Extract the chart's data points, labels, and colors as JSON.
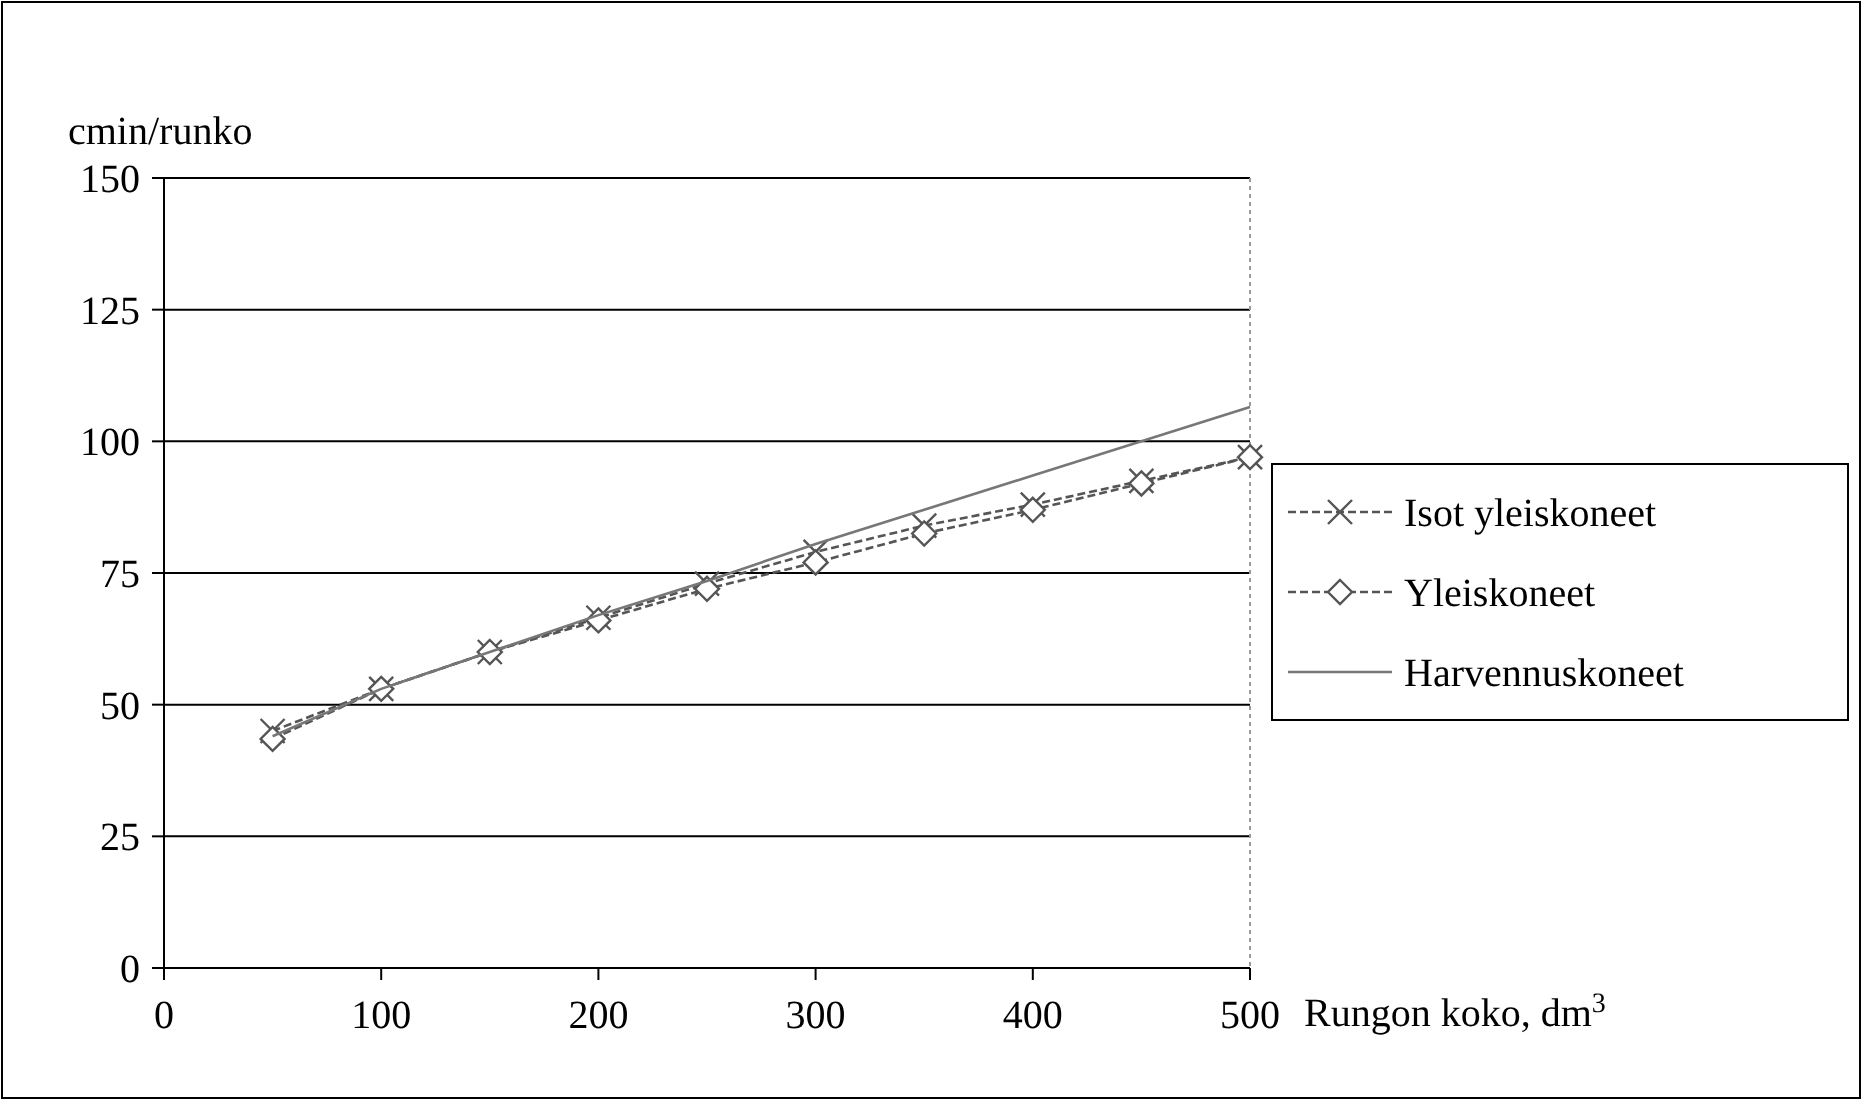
{
  "chart_data": {
    "type": "line",
    "xlabel": "Rungon koko, dm$^{3}$",
    "ylabel": "cmin/runko",
    "x": [
      50,
      100,
      150,
      200,
      250,
      300,
      350,
      400,
      450,
      500
    ],
    "series": [
      {
        "name": "Isot yleiskoneet",
        "color": "#555555",
        "marker": "cross",
        "line_style": "dashed",
        "values": [
          45,
          53,
          60,
          66.5,
          73,
          79,
          84,
          88,
          92.5,
          97
        ]
      },
      {
        "name": "Yleiskoneet",
        "color": "#555555",
        "marker": "diamond",
        "line_style": "dashed",
        "values": [
          43.5,
          53,
          60,
          66,
          72,
          77,
          82.5,
          87,
          92,
          97
        ]
      },
      {
        "name": "Harvennuskoneet",
        "color": "#777777",
        "marker": "none",
        "line_style": "solid",
        "values": [
          44,
          53,
          60,
          67,
          73.5,
          80.5,
          87,
          93.5,
          100,
          106.5
        ]
      }
    ],
    "xlim": [
      0,
      500
    ],
    "xticks": [
      0,
      100,
      200,
      300,
      400,
      500
    ],
    "ylim": [
      0,
      150
    ],
    "yticks": [
      0,
      25,
      50,
      75,
      100,
      125,
      150
    ],
    "grid": "y",
    "legend": "right"
  }
}
